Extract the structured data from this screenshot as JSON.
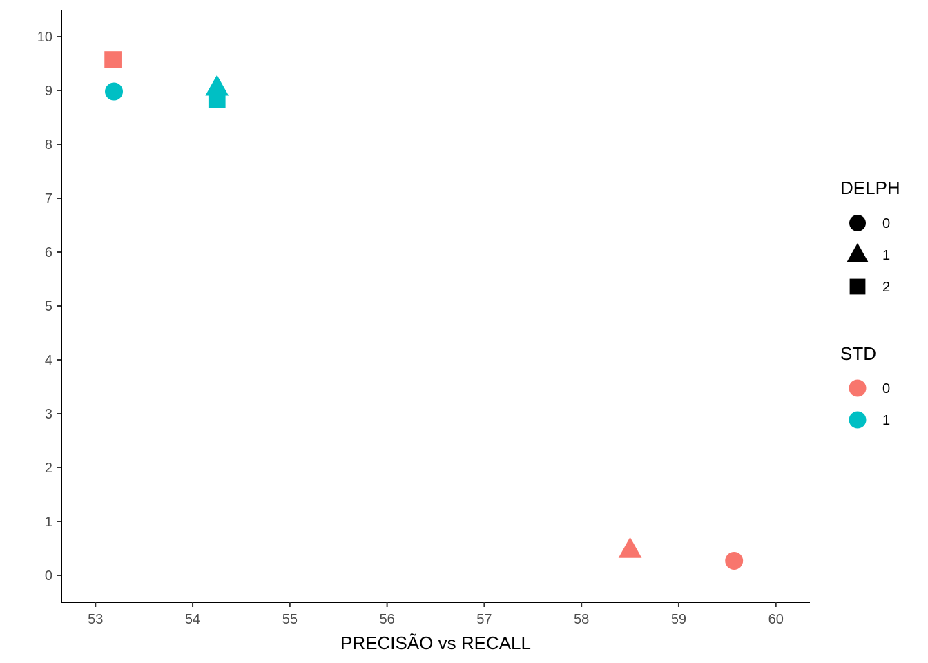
{
  "chart_data": {
    "type": "scatter",
    "title": "",
    "xlabel": "PRECISÃO vs RECALL",
    "ylabel": "",
    "xlim": [
      52.65,
      60.35
    ],
    "ylim": [
      -0.5,
      10.5
    ],
    "x_ticks": [
      53,
      54,
      55,
      56,
      57,
      58,
      59,
      60
    ],
    "y_ticks": [
      0,
      1,
      2,
      3,
      4,
      5,
      6,
      7,
      8,
      9,
      10
    ],
    "grid": false,
    "legend_position": "right",
    "points": [
      {
        "x": 53.18,
        "y": 9.57,
        "delph": "2",
        "std": "0"
      },
      {
        "x": 53.19,
        "y": 8.98,
        "delph": "0",
        "std": "1"
      },
      {
        "x": 54.25,
        "y": 8.83,
        "delph": "2",
        "std": "1"
      },
      {
        "x": 54.25,
        "y": 9.05,
        "delph": "1",
        "std": "1"
      },
      {
        "x": 58.5,
        "y": 0.47,
        "delph": "1",
        "std": "0"
      },
      {
        "x": 59.57,
        "y": 0.27,
        "delph": "0",
        "std": "0"
      }
    ],
    "legend_shape": {
      "title": "DELPH",
      "entries": [
        {
          "label": "0",
          "shape": "circle"
        },
        {
          "label": "1",
          "shape": "triangle"
        },
        {
          "label": "2",
          "shape": "square"
        }
      ]
    },
    "legend_color": {
      "title": "STD",
      "entries": [
        {
          "label": "0",
          "color": "#F8766D"
        },
        {
          "label": "1",
          "color": "#00BFC4"
        }
      ]
    }
  }
}
